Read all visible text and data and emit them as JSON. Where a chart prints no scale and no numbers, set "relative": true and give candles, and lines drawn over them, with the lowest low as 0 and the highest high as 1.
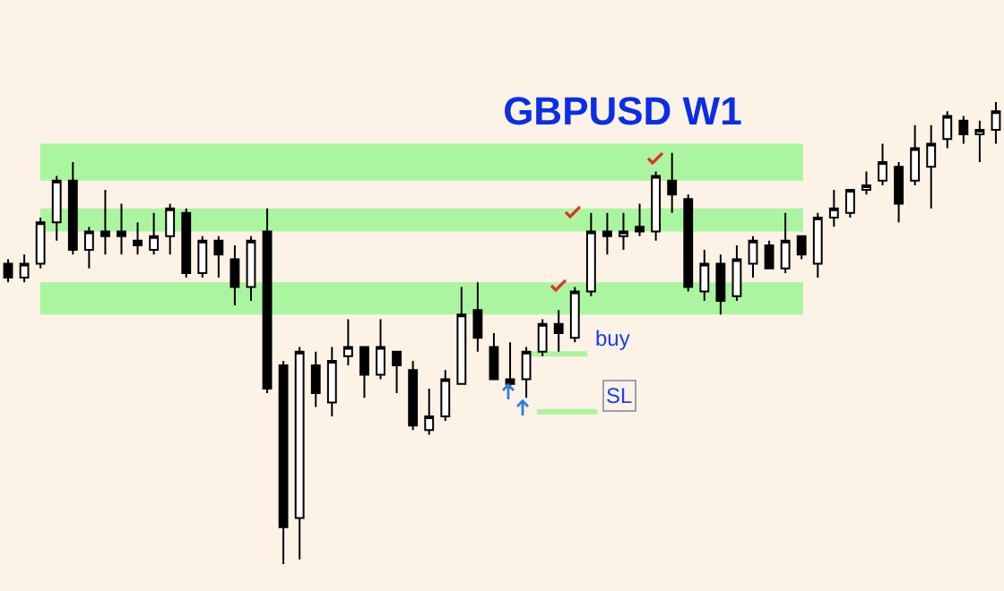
{
  "chart_data": {
    "type": "candlestick",
    "title": "GBPUSD W1",
    "relative": true,
    "grid": false,
    "categories": [
      null,
      null,
      null,
      null,
      null,
      null,
      null,
      null,
      null,
      null,
      null,
      null,
      null,
      null,
      null,
      null,
      null,
      null,
      null,
      null,
      null,
      null,
      null,
      null,
      null,
      null,
      null,
      null,
      null,
      null,
      null,
      null,
      null,
      null,
      null,
      null,
      null,
      null,
      null,
      null,
      null,
      null,
      null,
      null,
      null,
      null,
      null,
      null,
      null,
      null,
      null,
      null,
      null,
      null,
      null,
      null,
      null,
      null,
      null,
      null,
      null,
      null
    ],
    "ohlc": [
      [
        0.65,
        0.66,
        0.61,
        0.62
      ],
      [
        0.62,
        0.67,
        0.61,
        0.65
      ],
      [
        0.65,
        0.75,
        0.64,
        0.74
      ],
      [
        0.74,
        0.84,
        0.7,
        0.83
      ],
      [
        0.83,
        0.87,
        0.67,
        0.68
      ],
      [
        0.68,
        0.73,
        0.64,
        0.72
      ],
      [
        0.72,
        0.81,
        0.67,
        0.71
      ],
      [
        0.72,
        0.78,
        0.67,
        0.71
      ],
      [
        0.7,
        0.74,
        0.67,
        0.69
      ],
      [
        0.68,
        0.76,
        0.67,
        0.71
      ],
      [
        0.71,
        0.78,
        0.67,
        0.77
      ],
      [
        0.76,
        0.77,
        0.62,
        0.63
      ],
      [
        0.63,
        0.71,
        0.62,
        0.7
      ],
      [
        0.7,
        0.71,
        0.62,
        0.67
      ],
      [
        0.66,
        0.69,
        0.56,
        0.6
      ],
      [
        0.6,
        0.71,
        0.57,
        0.7
      ],
      [
        0.72,
        0.77,
        0.37,
        0.38
      ],
      [
        0.43,
        0.44,
        0,
        0.08
      ],
      [
        0.1,
        0.47,
        0.01,
        0.46
      ],
      [
        0.43,
        0.46,
        0.34,
        0.37
      ],
      [
        0.35,
        0.47,
        0.32,
        0.44
      ],
      [
        0.45,
        0.53,
        0.43,
        0.47
      ],
      [
        0.47,
        0.47,
        0.36,
        0.41
      ],
      [
        0.41,
        0.53,
        0.4,
        0.47
      ],
      [
        0.46,
        0.46,
        0.37,
        0.43
      ],
      [
        0.42,
        0.44,
        0.29,
        0.3
      ],
      [
        0.29,
        0.38,
        0.28,
        0.32
      ],
      [
        0.32,
        0.42,
        0.31,
        0.4
      ],
      [
        0.39,
        0.6,
        0.39,
        0.54
      ],
      [
        0.55,
        0.61,
        0.46,
        0.49
      ],
      [
        0.47,
        0.5,
        0.4,
        0.4
      ],
      [
        0.4,
        0.48,
        0.38,
        0.39
      ],
      [
        0.4,
        0.47,
        0.36,
        0.46
      ],
      [
        0.46,
        0.53,
        0.45,
        0.52
      ],
      [
        0.52,
        0.55,
        0.46,
        0.5
      ],
      [
        0.49,
        0.6,
        0.48,
        0.59
      ],
      [
        0.59,
        0.76,
        0.58,
        0.72
      ],
      [
        0.72,
        0.76,
        0.67,
        0.71
      ],
      [
        0.71,
        0.76,
        0.68,
        0.72
      ],
      [
        0.73,
        0.78,
        0.71,
        0.72
      ],
      [
        0.72,
        0.85,
        0.7,
        0.84
      ],
      [
        0.83,
        0.89,
        0.76,
        0.8
      ],
      [
        0.79,
        0.8,
        0.59,
        0.6
      ],
      [
        0.59,
        0.68,
        0.57,
        0.65
      ],
      [
        0.65,
        0.67,
        0.54,
        0.57
      ],
      [
        0.58,
        0.69,
        0.57,
        0.66
      ],
      [
        0.65,
        0.71,
        0.62,
        0.7
      ],
      [
        0.69,
        0.7,
        0.64,
        0.64
      ],
      [
        0.64,
        0.76,
        0.63,
        0.7
      ],
      [
        0.71,
        0.71,
        0.66,
        0.67
      ],
      [
        0.65,
        0.76,
        0.62,
        0.75
      ],
      [
        0.75,
        0.81,
        0.73,
        0.77
      ],
      [
        0.76,
        0.81,
        0.75,
        0.81
      ],
      [
        0.81,
        0.85,
        0.8,
        0.82
      ],
      [
        0.83,
        0.91,
        0.82,
        0.87
      ],
      [
        0.86,
        0.87,
        0.74,
        0.78
      ],
      [
        0.83,
        0.95,
        0.82,
        0.9
      ],
      [
        0.86,
        0.95,
        0.77,
        0.91
      ],
      [
        0.92,
        0.98,
        0.9,
        0.97
      ],
      [
        0.96,
        0.97,
        0.91,
        0.93
      ],
      [
        0.93,
        0.96,
        0.87,
        0.94
      ],
      [
        0.94,
        1,
        0.91,
        0.98
      ]
    ],
    "bands": [
      {
        "axis": "y",
        "from": 0.83,
        "to": 0.91,
        "color": "#acf5a0"
      },
      {
        "axis": "y",
        "from": 0.72,
        "to": 0.77,
        "color": "#acf5a0"
      },
      {
        "axis": "y",
        "from": 0.54,
        "to": 0.61,
        "color": "#acf5a0"
      }
    ],
    "ref_lines": [
      {
        "axis": "y",
        "value": 0.455,
        "label": "buy",
        "color": "#acf5a0"
      },
      {
        "axis": "y",
        "value": 0.33,
        "label": "SL",
        "color": "#acf5a0"
      }
    ]
  }
}
